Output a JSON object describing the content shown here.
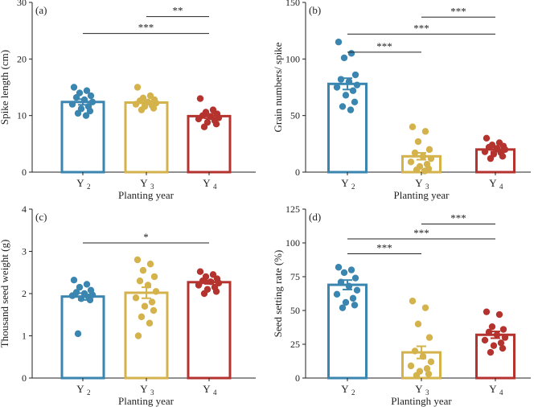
{
  "chart_data": [
    {
      "type": "bar",
      "panel_label": "(a)",
      "categories": [
        "Y",
        "Y",
        "Y"
      ],
      "category_subscripts": [
        "2",
        "3",
        "4"
      ],
      "xlabel": "Planting year",
      "ylabel": "Spike length (cm)",
      "ylim": [
        0,
        30
      ],
      "yticks": [
        "0",
        "10",
        "20",
        "30"
      ],
      "values": [
        12.4,
        12.3,
        9.9
      ],
      "errors": [
        0.5,
        0.3,
        0.4
      ],
      "colors": [
        "#3a86b0",
        "#d4b24c",
        "#b5332e"
      ],
      "points": [
        [
          15.0,
          14.4,
          14.0,
          13.5,
          13.2,
          12.8,
          12.4,
          12.0,
          11.6,
          11.2,
          10.8,
          10.4,
          10.0
        ],
        [
          15.0,
          13.5,
          13.1,
          12.8,
          12.6,
          12.4,
          12.2,
          12.0,
          11.8,
          11.6,
          11.3,
          11.0
        ],
        [
          13.0,
          11.0,
          10.6,
          10.3,
          10.0,
          9.8,
          9.6,
          9.4,
          9.1,
          8.8,
          8.5,
          8.0
        ]
      ],
      "significance": [
        {
          "from": 1,
          "to": 2,
          "label": "**",
          "y": 27.5
        },
        {
          "from": 0,
          "to": 2,
          "label": "***",
          "y": 24.5
        }
      ]
    },
    {
      "type": "bar",
      "panel_label": "(b)",
      "categories": [
        "Y",
        "Y",
        "Y"
      ],
      "category_subscripts": [
        "2",
        "3",
        "4"
      ],
      "xlabel": "Planting year",
      "ylabel": "Grain numbers/ spike",
      "ylim": [
        0,
        150
      ],
      "yticks": [
        "0",
        "50",
        "100",
        "150"
      ],
      "values": [
        78,
        14,
        20
      ],
      "errors": [
        5,
        3,
        2
      ],
      "colors": [
        "#3a86b0",
        "#d4b24c",
        "#b5332e"
      ],
      "points": [
        [
          115,
          105,
          101,
          86,
          82,
          80,
          77,
          75,
          72,
          68,
          62,
          58,
          55
        ],
        [
          40,
          36,
          27,
          20,
          17,
          14,
          12,
          9,
          7,
          5,
          3,
          2,
          1
        ],
        [
          30,
          26,
          24,
          23,
          22,
          21,
          20,
          18,
          17,
          16,
          14,
          12
        ]
      ],
      "significance": [
        {
          "from": 1,
          "to": 2,
          "label": "***",
          "y": 137
        },
        {
          "from": 0,
          "to": 2,
          "label": "***",
          "y": 122
        },
        {
          "from": 0,
          "to": 1,
          "label": "***",
          "y": 106
        }
      ]
    },
    {
      "type": "bar",
      "panel_label": "(c)",
      "categories": [
        "Y",
        "Y",
        "Y"
      ],
      "category_subscripts": [
        "2",
        "3",
        "4"
      ],
      "xlabel": "Planting year",
      "ylabel": "Thousand seed weight (g)",
      "ylim": [
        0,
        4
      ],
      "yticks": [
        "0",
        "1",
        "2",
        "3",
        "4"
      ],
      "values": [
        1.93,
        2.02,
        2.27
      ],
      "errors": [
        0.08,
        0.13,
        0.04
      ],
      "colors": [
        "#3a86b0",
        "#d4b24c",
        "#b5332e"
      ],
      "points": [
        [
          2.32,
          2.22,
          2.15,
          2.08,
          2.03,
          2.0,
          1.97,
          1.95,
          1.92,
          1.88,
          1.85,
          1.05
        ],
        [
          2.8,
          2.7,
          2.55,
          2.4,
          2.3,
          2.2,
          2.05,
          1.9,
          1.8,
          1.7,
          1.6,
          1.45,
          1.3,
          1.0
        ],
        [
          2.52,
          2.45,
          2.4,
          2.35,
          2.3,
          2.28,
          2.25,
          2.2,
          2.15,
          2.1,
          2.05,
          2.0
        ]
      ],
      "significance": [
        {
          "from": 0,
          "to": 2,
          "label": "*",
          "y": 3.2
        }
      ]
    },
    {
      "type": "bar",
      "panel_label": "(d)",
      "categories": [
        "Y",
        "Y",
        "Y"
      ],
      "category_subscripts": [
        "2",
        "3",
        "4"
      ],
      "xlabel": "Plantingh year",
      "ylabel": "Seed setting rate (%)",
      "ylim": [
        0,
        125
      ],
      "yticks": [
        "0",
        "25",
        "50",
        "75",
        "100",
        "125"
      ],
      "values": [
        69,
        19,
        32
      ],
      "errors": [
        3.5,
        4.5,
        2.5
      ],
      "colors": [
        "#3a86b0",
        "#d4b24c",
        "#b5332e"
      ],
      "points": [
        [
          82,
          80,
          78,
          74,
          71,
          68,
          65,
          62,
          59,
          56,
          54,
          52
        ],
        [
          57,
          52,
          40,
          30,
          20,
          16,
          12,
          9,
          7,
          5,
          3,
          2
        ],
        [
          49,
          47,
          38,
          36,
          34,
          32,
          30,
          28,
          26,
          24,
          22,
          19
        ]
      ],
      "significance": [
        {
          "from": 1,
          "to": 2,
          "label": "***",
          "y": 114
        },
        {
          "from": 0,
          "to": 2,
          "label": "***",
          "y": 103
        },
        {
          "from": 0,
          "to": 1,
          "label": "***",
          "y": 92
        }
      ]
    }
  ]
}
